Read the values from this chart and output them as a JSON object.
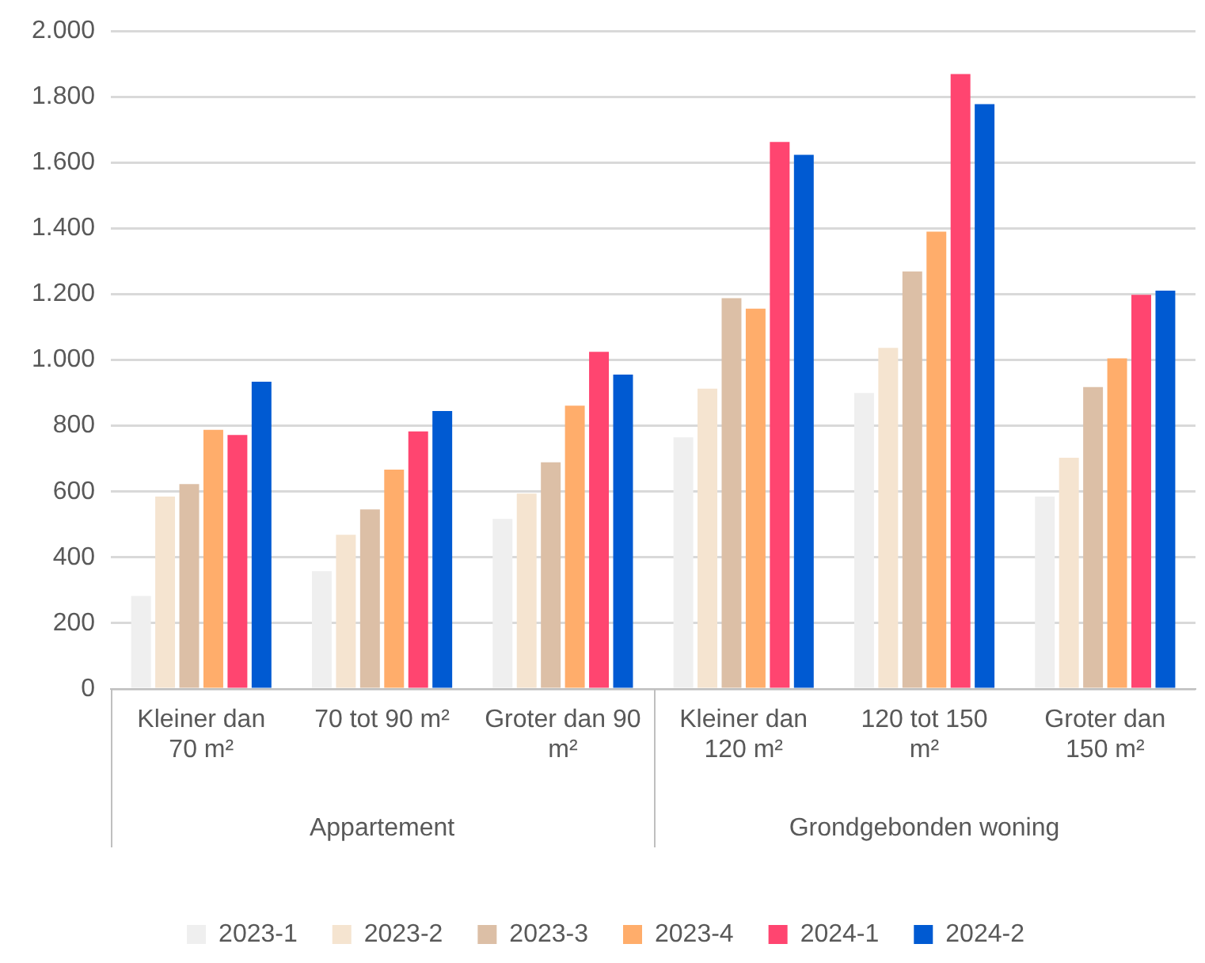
{
  "chart_data": {
    "type": "bar",
    "categories": [
      "Kleiner dan 70 m²",
      "70 tot 90 m²",
      "Groter dan 90 m²",
      "Kleiner dan 120 m²",
      "120 tot 150 m²",
      "Groter dan 150 m²"
    ],
    "annotations": [
      "Appartement",
      "Grondgebonden woning"
    ],
    "series": [
      {
        "name": "2023-1",
        "color": "#efefef",
        "values": [
          283,
          358,
          517,
          765,
          900,
          585
        ]
      },
      {
        "name": "2023-2",
        "color": "#f5e4d0",
        "values": [
          585,
          469,
          594,
          913,
          1037,
          703
        ]
      },
      {
        "name": "2023-3",
        "color": "#dcbfa6",
        "values": [
          623,
          546,
          689,
          1188,
          1269,
          918
        ]
      },
      {
        "name": "2023-4",
        "color": "#ffad6b",
        "values": [
          788,
          667,
          861,
          1156,
          1390,
          1005
        ]
      },
      {
        "name": "2024-1",
        "color": "#ff4570",
        "values": [
          772,
          783,
          1025,
          1663,
          1869,
          1198
        ]
      },
      {
        "name": "2024-2",
        "color": "#005ad2",
        "values": [
          934,
          845,
          956,
          1624,
          1778,
          1211
        ]
      }
    ],
    "ylim": [
      0,
      2000
    ],
    "yticks": [
      0,
      {
        "value": 200,
        "label": "200"
      },
      {
        "value": 400,
        "label": "400"
      },
      {
        "value": 600,
        "label": "600"
      },
      {
        "value": 800,
        "label": "800"
      },
      {
        "value": 1000,
        "label": "1.000"
      },
      {
        "value": 1200,
        "label": "1.200"
      },
      {
        "value": 1400,
        "label": "1.400"
      },
      {
        "value": 1600,
        "label": "1.600"
      },
      {
        "value": 1800,
        "label": "1.800"
      },
      {
        "value": 2000,
        "label": "2.000"
      }
    ],
    "grid": "y",
    "legend": "bottom"
  }
}
